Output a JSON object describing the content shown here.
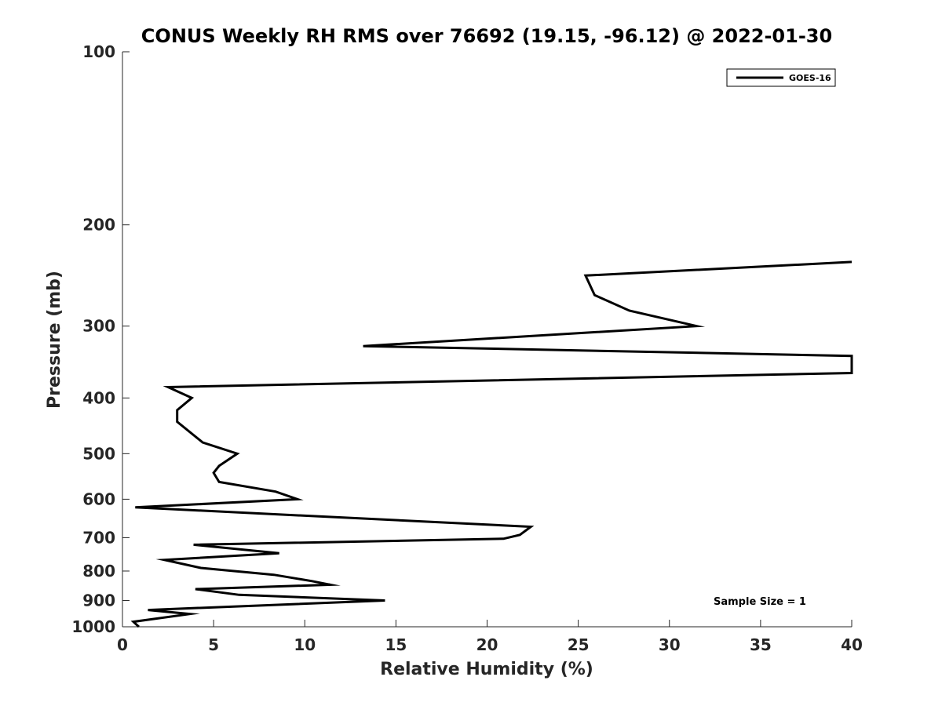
{
  "chart_data": {
    "type": "line",
    "title": "CONUS Weekly RH RMS over 76692 (19.15, -96.12) @ 2022-01-30",
    "xlabel": "Relative Humidity (%)",
    "ylabel": "Pressure (mb)",
    "xlim": [
      0,
      40
    ],
    "ylim": [
      100,
      1000
    ],
    "y_scale": "log",
    "y_reversed": true,
    "x_ticks": [
      0,
      5,
      10,
      15,
      20,
      25,
      30,
      35,
      40
    ],
    "x_tick_labels": [
      "0",
      "5",
      "10",
      "15",
      "20",
      "25",
      "30",
      "35",
      "40"
    ],
    "y_ticks": [
      100,
      200,
      300,
      400,
      500,
      600,
      700,
      800,
      900,
      1000
    ],
    "y_tick_labels": [
      "100",
      "200",
      "300",
      "400",
      "500",
      "600",
      "700",
      "800",
      "900",
      "1000"
    ],
    "grid": false,
    "legend_placement": "top-right",
    "annotation": "Sample Size = 1",
    "series": [
      {
        "name": "GOES-16",
        "color": "#000000",
        "points": [
          [
            40.0,
            232
          ],
          [
            25.4,
            245
          ],
          [
            25.9,
            265
          ],
          [
            27.8,
            282
          ],
          [
            31.5,
            300
          ],
          [
            13.2,
            325
          ],
          [
            40.0,
            338
          ],
          [
            40.0,
            362
          ],
          [
            2.5,
            383
          ],
          [
            3.8,
            400
          ],
          [
            3.0,
            420
          ],
          [
            3.0,
            440
          ],
          [
            4.4,
            478
          ],
          [
            6.3,
            500
          ],
          [
            5.3,
            525
          ],
          [
            5.0,
            540
          ],
          [
            5.3,
            560
          ],
          [
            8.4,
            582
          ],
          [
            9.6,
            600
          ],
          [
            0.7,
            620
          ],
          [
            22.4,
            670
          ],
          [
            21.8,
            692
          ],
          [
            20.9,
            703
          ],
          [
            3.9,
            720
          ],
          [
            8.6,
            745
          ],
          [
            2.3,
            765
          ],
          [
            4.3,
            790
          ],
          [
            8.3,
            812
          ],
          [
            10.4,
            833
          ],
          [
            11.4,
            845
          ],
          [
            4.0,
            860
          ],
          [
            6.4,
            880
          ],
          [
            14.4,
            900
          ],
          [
            1.4,
            935
          ],
          [
            3.7,
            950
          ],
          [
            0.6,
            980
          ],
          [
            0.9,
            1000
          ]
        ]
      }
    ]
  }
}
